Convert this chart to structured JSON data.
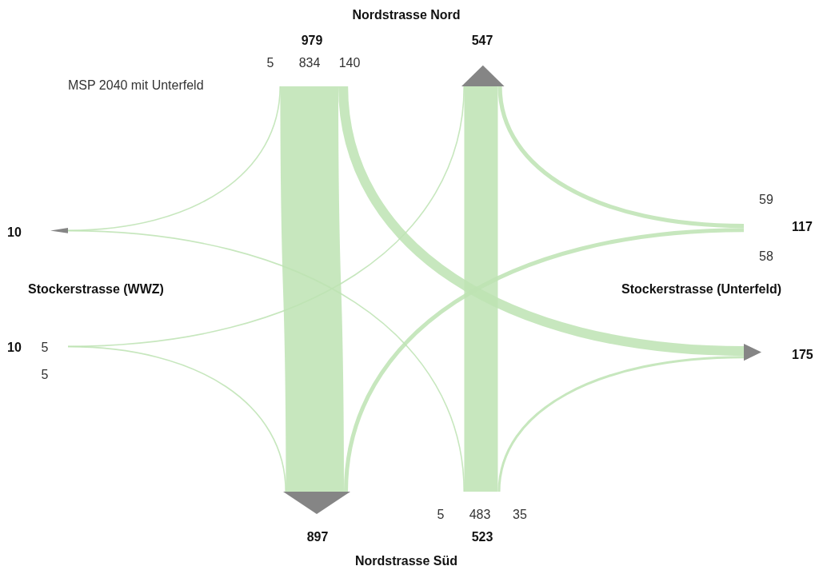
{
  "chart_data": {
    "type": "other",
    "annotations": [
      "MSP 2040 mit Unterfeld"
    ],
    "categories": [
      "Nordstrasse Nord",
      "Stockerstrasse (Unterfeld)",
      "Nordstrasse Süd",
      "Stockerstrasse (WWZ)"
    ],
    "values": [
      979,
      117,
      523,
      10
    ],
    "totals": [
      "547",
      "175",
      "897",
      "10"
    ],
    "series": [
      {
        "color": "#bde3b3",
        "values": [
          null,
          59,
          483,
          5
        ]
      },
      {
        "color": "#bde3b3",
        "values": [
          140,
          null,
          35,
          null
        ]
      },
      {
        "color": "#bde3b3",
        "values": [
          834,
          58,
          null,
          5
        ]
      },
      {
        "color": "#bde3b3",
        "values": [
          5,
          null,
          5,
          null
        ]
      }
    ],
    "data_labels": true
  }
}
